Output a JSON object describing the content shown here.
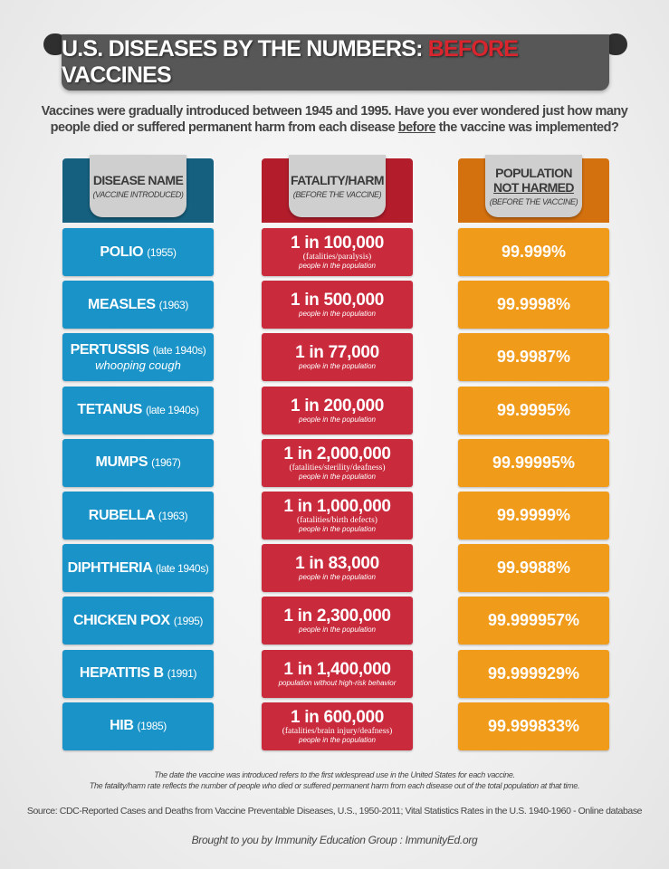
{
  "title": {
    "part1": "U.S. DISEASES BY THE NUMBERS:",
    "highlight": "BEFORE",
    "part2": "VACCINES"
  },
  "intro": {
    "line1": "Vaccines were gradually introduced between 1945 and 1995.  Have you ever wondered just how many",
    "line2a": "people died or suffered permanent harm from each disease ",
    "line2u": "before",
    "line2b": " the vaccine was implemented?"
  },
  "headers": [
    {
      "title": "DISEASE NAME",
      "sub": "(VACCINE INTRODUCED)"
    },
    {
      "title": "FATALITY/HARM",
      "sub": "(BEFORE THE VACCINE)"
    },
    {
      "title1": "POPULATION",
      "title2": "NOT HARMED",
      "sub": "(BEFORE THE VACCINE)"
    }
  ],
  "colors": {
    "blue": "#1a93c8",
    "blue_header": "#15607f",
    "red": "#c92a3c",
    "red_header": "#b21c2b",
    "orange": "#f19b1b",
    "orange_header": "#d4710f",
    "banner": "#575757"
  },
  "rows": [
    {
      "disease": "POLIO",
      "year": "(1955)",
      "sub": "",
      "rate": "1 in 100,000",
      "note": "(fatalities/paralysis)",
      "pop": "people in the population",
      "not_harmed": "99.999%"
    },
    {
      "disease": "MEASLES",
      "year": "(1963)",
      "sub": "",
      "rate": "1 in 500,000",
      "note": "",
      "pop": "people in the population",
      "not_harmed": "99.9998%"
    },
    {
      "disease": "PERTUSSIS",
      "year": "(late 1940s)",
      "sub": "whooping cough",
      "rate": "1 in 77,000",
      "note": "",
      "pop": "people in the population",
      "not_harmed": "99.9987%"
    },
    {
      "disease": "TETANUS",
      "year": "(late 1940s)",
      "sub": "",
      "rate": "1 in 200,000",
      "note": "",
      "pop": "people in the population",
      "not_harmed": "99.9995%"
    },
    {
      "disease": "MUMPS",
      "year": "(1967)",
      "sub": "",
      "rate": "1 in 2,000,000",
      "note": "(fatalities/sterility/deafness)",
      "pop": "people in the population",
      "not_harmed": "99.99995%"
    },
    {
      "disease": "RUBELLA",
      "year": "(1963)",
      "sub": "",
      "rate": "1 in 1,000,000",
      "note": "(fatalities/birth defects)",
      "pop": "people in the population",
      "not_harmed": "99.9999%"
    },
    {
      "disease": "DIPHTHERIA",
      "year": "(late 1940s)",
      "sub": "",
      "rate": "1 in 83,000",
      "note": "",
      "pop": "people in the population",
      "not_harmed": "99.9988%"
    },
    {
      "disease": "CHICKEN POX",
      "year": "(1995)",
      "sub": "",
      "rate": "1 in 2,300,000",
      "note": "",
      "pop": "people in the population",
      "not_harmed": "99.999957%"
    },
    {
      "disease": "HEPATITIS B",
      "year": "(1991)",
      "sub": "",
      "rate": "1 in 1,400,000",
      "note": "",
      "pop": "population without high-risk behavior",
      "not_harmed": "99.999929%"
    },
    {
      "disease": "HIB",
      "year": "(1985)",
      "sub": "",
      "rate": "1 in 600,000",
      "note": "(fatalities/brain injury/deafness)",
      "pop": "people in the population",
      "not_harmed": "99.999833%"
    }
  ],
  "footer": {
    "note1": "The date the vaccine was introduced refers to the first widespread use in the United States for each vaccine.",
    "note2": "The fatality/harm rate reflects the number of people who died or suffered permanent harm from each disease out of the total population at that time.",
    "source": "Source: CDC-Reported Cases and Deaths from Vaccine Preventable Diseases, U.S., 1950-2011; Vital Statistics Rates in the U.S. 1940-1960 - Online database",
    "credit": "Brought to you by Immunity Education Group : ImmunityEd.org"
  }
}
